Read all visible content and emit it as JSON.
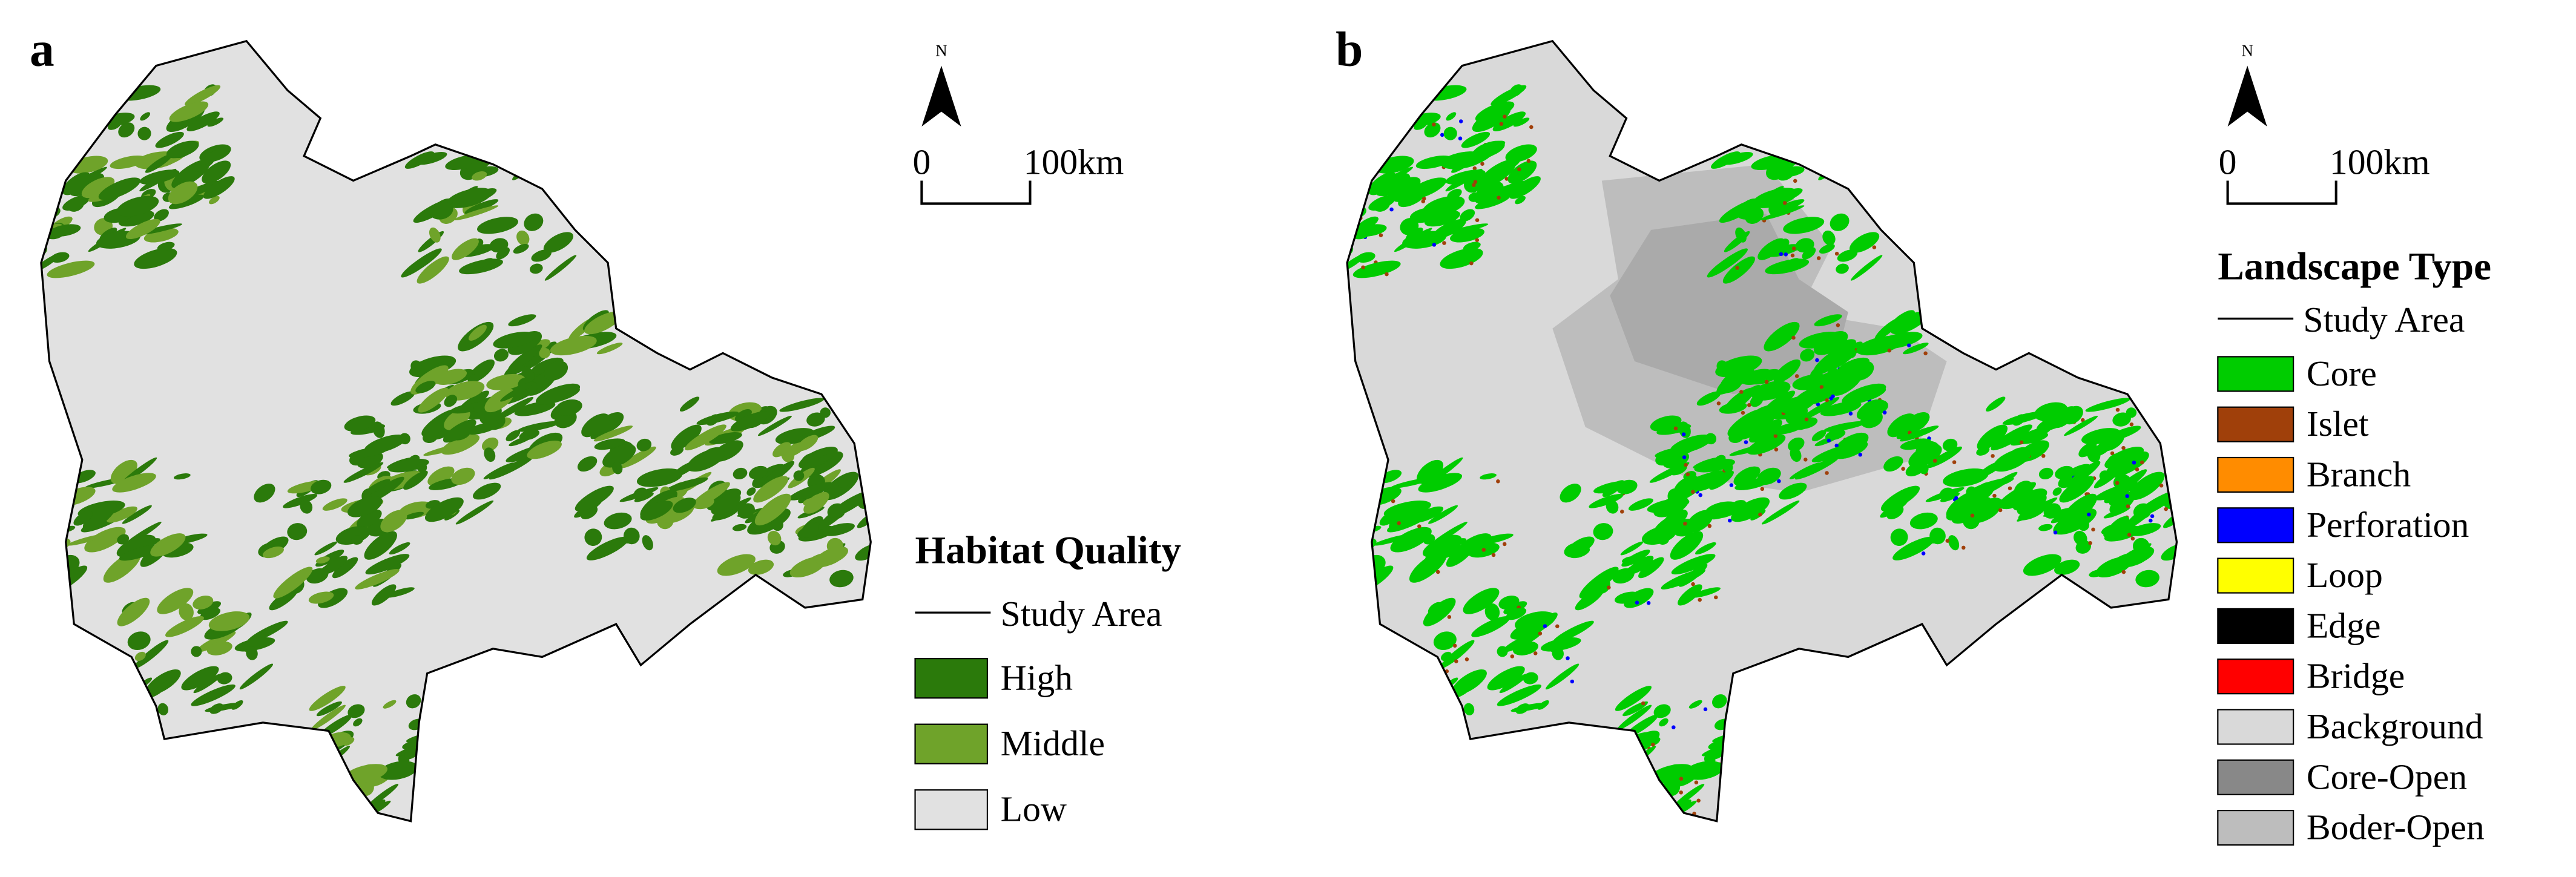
{
  "panels": [
    {
      "label": "a",
      "north": "N",
      "scale": {
        "start": "0",
        "end": "100km"
      },
      "legend": {
        "title": "Habitat Quality",
        "boundary": "Study Area",
        "classes": [
          {
            "label": "High",
            "color": "#2b7a0b"
          },
          {
            "label": "Middle",
            "color": "#6fa32a"
          },
          {
            "label": "Low",
            "color": "#e1e1e1"
          }
        ]
      }
    },
    {
      "label": "b",
      "north": "N",
      "scale": {
        "start": "0",
        "end": "100km"
      },
      "legend": {
        "title": "Landscape Type",
        "boundary": "Study Area",
        "classes": [
          {
            "label": "Core",
            "color": "#00cc00"
          },
          {
            "label": "Islet",
            "color": "#a0400a"
          },
          {
            "label": "Branch",
            "color": "#ff8c00"
          },
          {
            "label": "Perforation",
            "color": "#0000ff"
          },
          {
            "label": "Loop",
            "color": "#ffff00"
          },
          {
            "label": "Edge",
            "color": "#000000"
          },
          {
            "label": "Bridge",
            "color": "#ff0000"
          },
          {
            "label": "Background",
            "color": "#d9d9d9"
          },
          {
            "label": "Core-Open",
            "color": "#888888"
          },
          {
            "label": "Boder-Open",
            "color": "#bdbdbd"
          }
        ]
      }
    }
  ]
}
